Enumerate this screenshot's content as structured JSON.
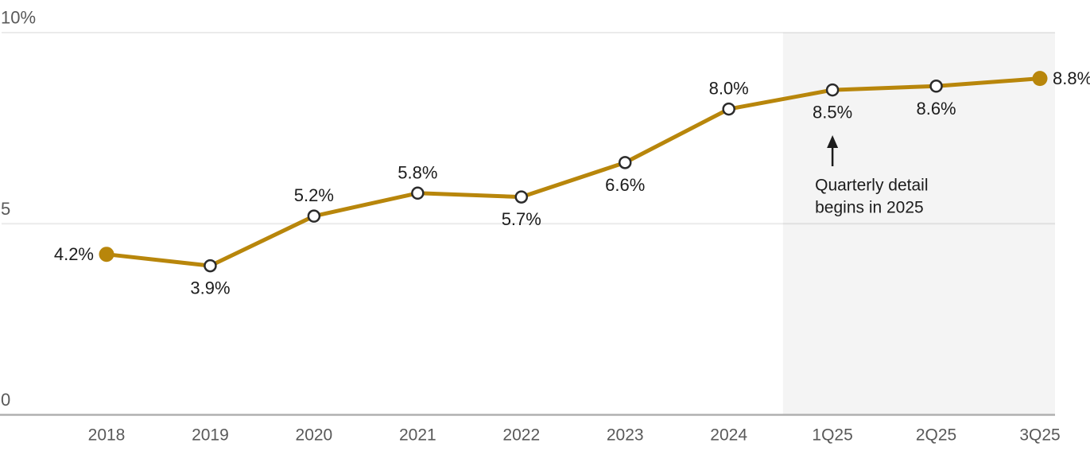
{
  "chart_data": {
    "type": "line",
    "title": "",
    "categories": [
      "2018",
      "2019",
      "2020",
      "2021",
      "2022",
      "2023",
      "2024",
      "1Q25",
      "2Q25",
      "3Q25"
    ],
    "values": [
      4.2,
      3.9,
      5.2,
      5.8,
      5.7,
      6.6,
      8.0,
      8.5,
      8.6,
      8.8
    ],
    "point_labels": [
      "4.2%",
      "3.9%",
      "5.2%",
      "5.8%",
      "5.7%",
      "6.6%",
      "8.0%",
      "8.5%",
      "8.6%",
      "8.8%"
    ],
    "label_placement": [
      "left",
      "below",
      "above",
      "above",
      "below",
      "below",
      "above",
      "below",
      "below",
      "right"
    ],
    "marker_style": [
      "filled",
      "open",
      "open",
      "open",
      "open",
      "open",
      "open",
      "open",
      "open",
      "filled"
    ],
    "ylim": [
      0,
      10
    ],
    "yticks": [
      {
        "value": 0,
        "label": "0"
      },
      {
        "value": 5,
        "label": "5"
      },
      {
        "value": 10,
        "label": "10%"
      }
    ],
    "grid": "horizontal",
    "legend": "none",
    "line_color": "#B8860B",
    "marker_stroke_color": "#2b2b2b",
    "shaded_region": {
      "from_after_category": "2024",
      "through_category": "3Q25",
      "color": "#f4f4f4"
    },
    "annotation": {
      "lines": [
        "Quarterly detail",
        "begins in 2025"
      ],
      "arrow_direction": "up",
      "target_category": "1Q25",
      "color": "#1c1c1c"
    }
  }
}
